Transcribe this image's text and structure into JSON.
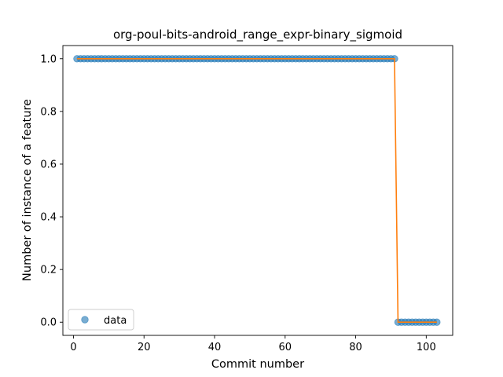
{
  "chart_data": {
    "type": "scatter",
    "title": "org-poul-bits-android_range_expr-binary_sigmoid",
    "xlabel": "Commit number",
    "ylabel": "Number of instance of a feature",
    "xlim": [
      -3,
      107.5
    ],
    "ylim": [
      -0.05,
      1.05
    ],
    "xticks": [
      "0",
      "20",
      "40",
      "60",
      "80",
      "100"
    ],
    "yticks": [
      "0.0",
      "0.2",
      "0.4",
      "0.6",
      "0.8",
      "1.0"
    ],
    "grid": false,
    "legend": {
      "placement": "lower-left",
      "entries": [
        "data"
      ]
    },
    "series": [
      {
        "name": "data",
        "kind": "scatter",
        "color": "#1f77b4",
        "segments": [
          {
            "x_start": 1,
            "x_end": 91,
            "y": 1.0
          },
          {
            "x_start": 92,
            "x_end": 103,
            "y": 0.0
          }
        ]
      },
      {
        "kind": "line",
        "color": "#ff7f0e",
        "x": [
          1,
          91,
          92,
          103
        ],
        "y": [
          1.0,
          1.0,
          0.0,
          0.0
        ]
      }
    ]
  }
}
